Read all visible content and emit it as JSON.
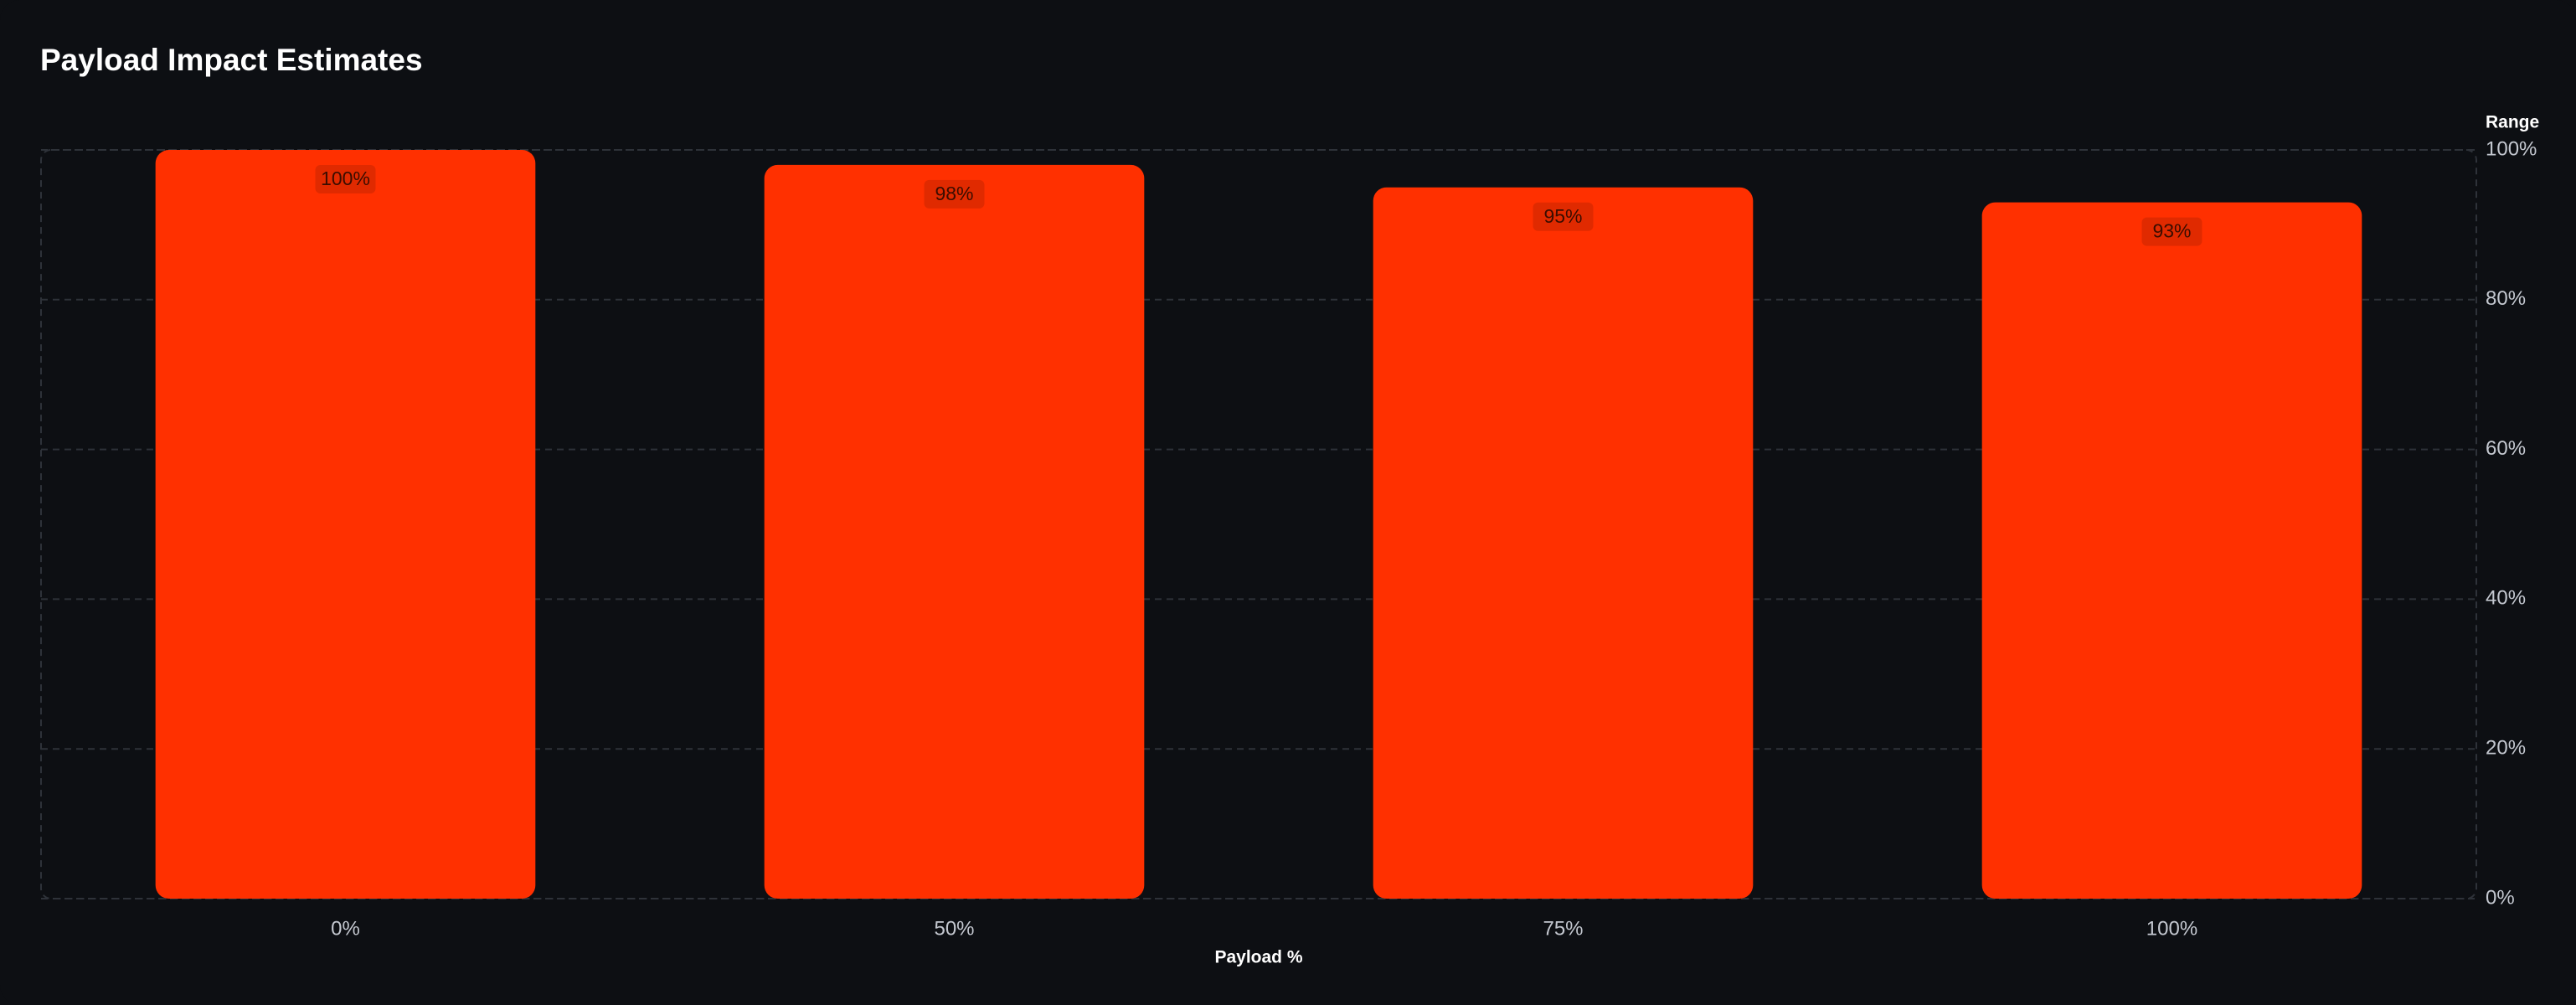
{
  "chart_data": {
    "type": "bar",
    "title": "Payload Impact Estimates",
    "x_label": "Payload %",
    "y_label": "Range",
    "categories": [
      "0%",
      "50%",
      "75%",
      "100%"
    ],
    "values": [
      100,
      98,
      95,
      93
    ],
    "value_labels": [
      "100%",
      "98%",
      "95%",
      "93%"
    ],
    "color": "#ff3000",
    "ylim": [
      0,
      100
    ],
    "yticks": [
      {
        "value": 0,
        "label": "0%"
      },
      {
        "value": 20,
        "label": "20%"
      },
      {
        "value": 40,
        "label": "40%"
      },
      {
        "value": 60,
        "label": "60%"
      },
      {
        "value": 80,
        "label": "80%"
      },
      {
        "value": 100,
        "label": "100%"
      }
    ],
    "grid": true
  }
}
